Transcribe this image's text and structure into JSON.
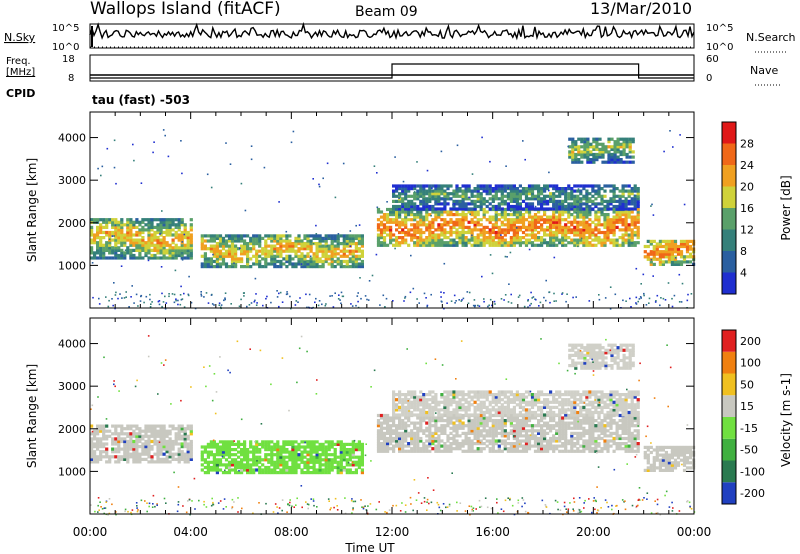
{
  "header": {
    "title": "Wallops Island (fitACF)",
    "beam": "Beam 09",
    "date": "13/Mar/2010"
  },
  "top_panels": {
    "nsky_label": "N.Sky",
    "nsearch_label": "N.Search",
    "freq_label_line1": "Freq.",
    "freq_label_line2": "[MHz]",
    "nave_label": "Nave",
    "cpid_label": "CPID",
    "cpid_value": "tau (fast) -503",
    "noise_ticks": [
      "10^5",
      "10^0"
    ],
    "freq_ticks": [
      "18",
      "8"
    ],
    "nave_ticks": [
      "60",
      "0"
    ]
  },
  "chart_data": [
    {
      "type": "heatmap",
      "name": "power",
      "ylabel": "Slant Range [km]",
      "xlabel": "",
      "ylim": [
        0,
        4600
      ],
      "yticks": [
        "1000",
        "2000",
        "3000",
        "4000"
      ],
      "xticks": [
        "00:00",
        "04:00",
        "08:00",
        "12:00",
        "16:00",
        "20:00",
        "00:00"
      ],
      "colorbar_label": "Power [dB]",
      "colorbar_ticks": [
        "4",
        "8",
        "12",
        "16",
        "20",
        "24",
        "28"
      ],
      "colors": [
        "#1f2fd0",
        "#2a5fa0",
        "#35807a",
        "#5aa06a",
        "#cfd23a",
        "#f0a020",
        "#f06818",
        "#e01818"
      ],
      "bands": [
        {
          "t0": 0.0,
          "t1": 4.0,
          "r0": 1150,
          "r1": 2100,
          "level": 3
        },
        {
          "t0": 4.4,
          "t1": 10.8,
          "r0": 950,
          "r1": 1700,
          "level": 3
        },
        {
          "t0": 11.4,
          "t1": 21.8,
          "r0": 1450,
          "r1": 2300,
          "level": 4
        },
        {
          "t0": 12.0,
          "t1": 21.8,
          "r0": 2300,
          "r1": 2900,
          "level": 1
        },
        {
          "t0": 19.0,
          "t1": 21.6,
          "r0": 3400,
          "r1": 4000,
          "level": 2
        },
        {
          "t0": 22.0,
          "t1": 24.0,
          "r0": 1000,
          "r1": 1600,
          "level": 4
        }
      ]
    },
    {
      "type": "heatmap",
      "name": "velocity",
      "ylabel": "Slant Range [km]",
      "xlabel": "Time UT",
      "ylim": [
        0,
        4600
      ],
      "yticks": [
        "1000",
        "2000",
        "3000",
        "4000"
      ],
      "xticks": [
        "00:00",
        "04:00",
        "08:00",
        "12:00",
        "16:00",
        "20:00",
        "00:00"
      ],
      "colorbar_label": "Velocity [m s-1]",
      "colorbar_ticks": [
        "200",
        "100",
        "50",
        "15",
        "-15",
        "-50",
        "-100",
        "-200"
      ],
      "colors": [
        "#2040c0",
        "#2a7a50",
        "#40b040",
        "#70e040",
        "#c8c8c0",
        "#f0c020",
        "#f08010",
        "#e02020"
      ],
      "bands": [
        {
          "t0": 0.0,
          "t1": 4.0,
          "r0": 1200,
          "r1": 2100,
          "color": "#c8c8c0"
        },
        {
          "t0": 4.4,
          "t1": 10.8,
          "r0": 950,
          "r1": 1700,
          "color": "#70e040"
        },
        {
          "t0": 11.4,
          "t1": 21.8,
          "r0": 1450,
          "r1": 2300,
          "color": "#c8c8c0"
        },
        {
          "t0": 12.0,
          "t1": 21.8,
          "r0": 2300,
          "r1": 2900,
          "color": "#d0d0c8"
        },
        {
          "t0": 19.0,
          "t1": 21.6,
          "r0": 3400,
          "r1": 4000,
          "color": "#d0d0c8"
        },
        {
          "t0": 22.0,
          "t1": 24.0,
          "r0": 1000,
          "r1": 1600,
          "color": "#c8c8c0"
        }
      ]
    }
  ],
  "nave_step": {
    "t_switch_on": 12.0,
    "t_switch_off": 21.8
  }
}
